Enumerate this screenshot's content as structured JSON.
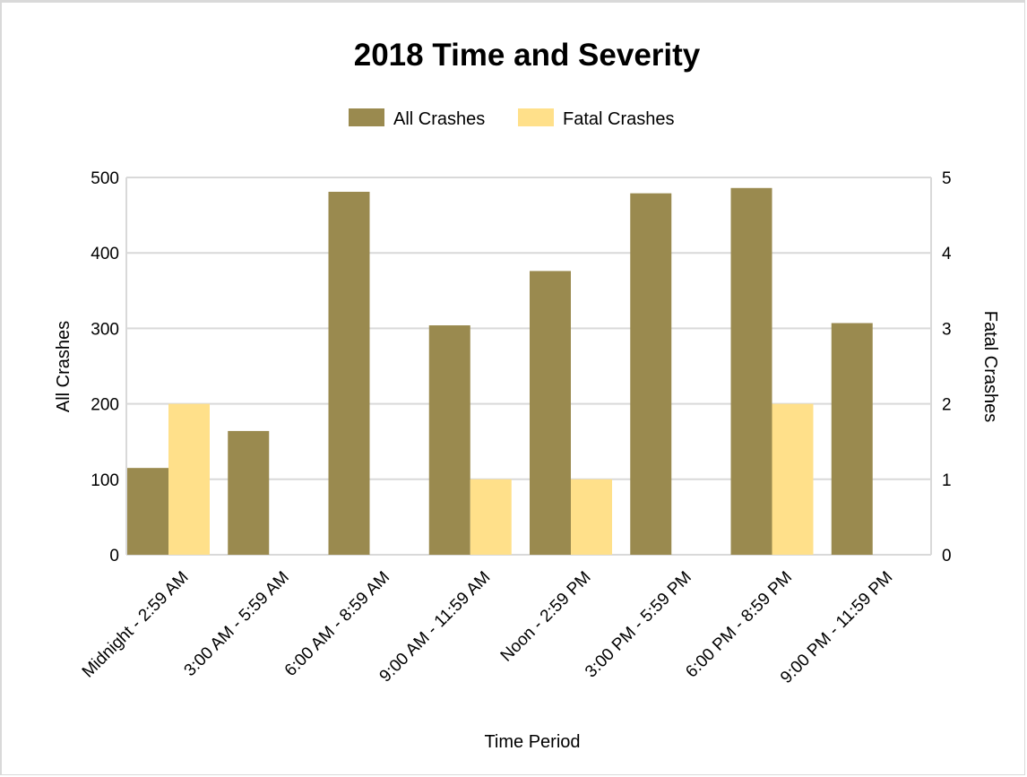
{
  "chart_data": {
    "type": "bar",
    "title": "2018 Time and Severity",
    "xlabel": "Time Period",
    "ylabel": "All Crashes",
    "y2label": "Fatal Crashes",
    "ylim": [
      0,
      500
    ],
    "y2lim": [
      0,
      5
    ],
    "yticks": [
      "0",
      "100",
      "200",
      "300",
      "400",
      "500"
    ],
    "y2ticks": [
      "0",
      "1",
      "2",
      "3",
      "4",
      "5"
    ],
    "grid": true,
    "legend_position": "top",
    "categories": [
      "Midnight - 2:59 AM",
      "3:00 AM - 5:59 AM",
      "6:00 AM - 8:59 AM",
      "9:00 AM - 11:59 AM",
      "Noon - 2:59 PM",
      "3:00 PM - 5:59 PM",
      "6:00 PM - 8:59 PM",
      "9:00 PM - 11:59 PM"
    ],
    "series": [
      {
        "name": "All Crashes",
        "axis": "left",
        "color": "#9a8a4f",
        "values": [
          115,
          164,
          481,
          304,
          376,
          479,
          486,
          307
        ]
      },
      {
        "name": "Fatal Crashes",
        "axis": "right",
        "color": "#ffe08a",
        "values": [
          2,
          0,
          0,
          1,
          1,
          0,
          2,
          0
        ]
      }
    ]
  }
}
